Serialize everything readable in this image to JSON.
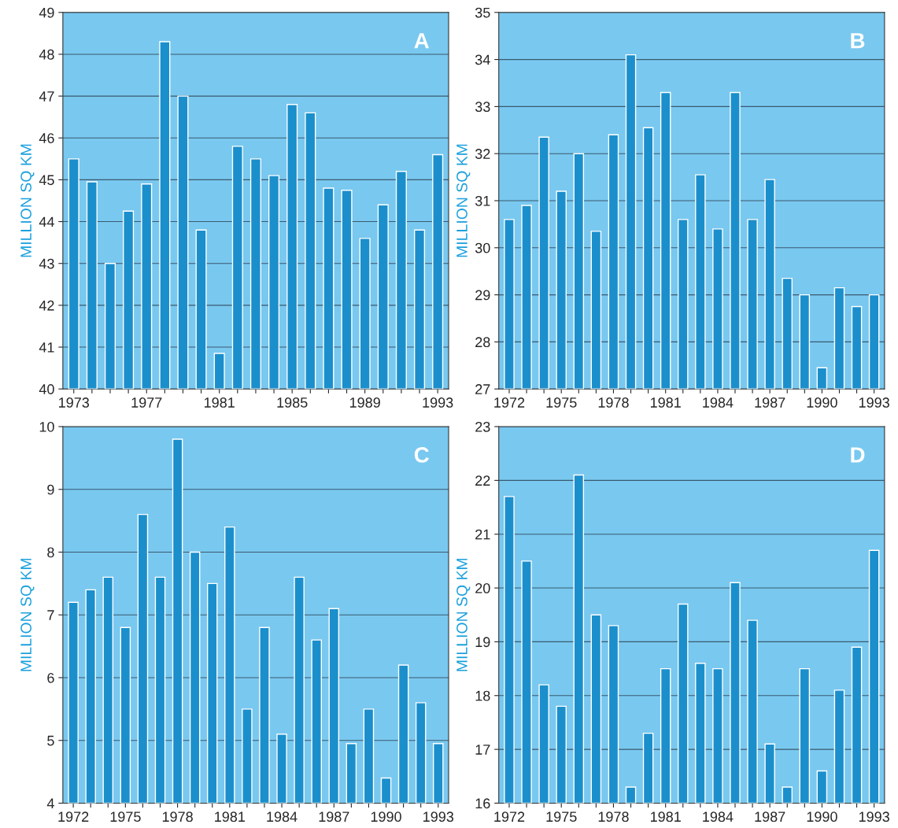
{
  "chart_data": [
    {
      "type": "bar",
      "title": "A",
      "ylabel": "MILLION SQ KM",
      "categories": [
        "1973",
        null,
        null,
        null,
        "1977",
        null,
        null,
        null,
        "1981",
        null,
        null,
        null,
        "1985",
        null,
        null,
        null,
        "1989",
        null,
        null,
        null,
        "1993"
      ],
      "series": [
        {
          "color": "#1b8fcc",
          "values": [
            45.5,
            44.95,
            43.0,
            44.25,
            44.9,
            48.3,
            47.0,
            43.8,
            40.85,
            45.8,
            45.5,
            45.1,
            46.8,
            46.6,
            44.8,
            44.75,
            43.6,
            44.4,
            45.2,
            43.8,
            45.6
          ]
        }
      ],
      "ylim": [
        40,
        49
      ],
      "yticks": [
        40,
        41,
        42,
        43,
        44,
        45,
        46,
        47,
        48,
        49
      ],
      "grid": "y"
    },
    {
      "type": "bar",
      "title": "B",
      "ylabel": "MILLION SQ KM",
      "categories": [
        "1972",
        null,
        null,
        "1975",
        null,
        null,
        "1978",
        null,
        null,
        "1981",
        null,
        null,
        "1984",
        null,
        null,
        "1987",
        null,
        null,
        "1990",
        null,
        null,
        "1993"
      ],
      "series": [
        {
          "color": "#1b8fcc",
          "values": [
            30.6,
            30.9,
            32.35,
            31.2,
            32.0,
            30.35,
            32.4,
            34.1,
            32.55,
            33.3,
            30.6,
            31.55,
            30.4,
            33.3,
            30.6,
            31.45,
            29.35,
            29.0,
            27.45,
            29.15,
            28.75,
            29.0
          ]
        }
      ],
      "ylim": [
        27,
        35
      ],
      "yticks": [
        27,
        28,
        29,
        30,
        31,
        32,
        33,
        34,
        35
      ],
      "grid": "y"
    },
    {
      "type": "bar",
      "title": "C",
      "ylabel": "MILLION SQ KM",
      "categories": [
        "1972",
        null,
        null,
        "1975",
        null,
        null,
        "1978",
        null,
        null,
        "1981",
        null,
        null,
        "1984",
        null,
        null,
        "1987",
        null,
        null,
        "1990",
        null,
        null,
        "1993"
      ],
      "series": [
        {
          "color": "#1b8fcc",
          "values": [
            7.2,
            7.4,
            7.6,
            6.8,
            8.6,
            7.6,
            9.8,
            8.0,
            7.5,
            8.4,
            5.5,
            6.8,
            5.1,
            7.6,
            6.6,
            7.1,
            4.95,
            5.5,
            4.4,
            6.2,
            5.6,
            4.95
          ]
        }
      ],
      "ylim": [
        4,
        10
      ],
      "yticks": [
        4,
        5,
        6,
        7,
        8,
        9,
        10
      ],
      "grid": "y"
    },
    {
      "type": "bar",
      "title": "D",
      "ylabel": "MILLION SQ KM",
      "categories": [
        "1972",
        null,
        null,
        "1975",
        null,
        null,
        "1978",
        null,
        null,
        "1981",
        null,
        null,
        "1984",
        null,
        null,
        "1987",
        null,
        null,
        "1990",
        null,
        null,
        "1993"
      ],
      "series": [
        {
          "color": "#1b8fcc",
          "values": [
            21.7,
            20.5,
            18.2,
            17.8,
            22.1,
            19.5,
            19.3,
            16.3,
            17.3,
            18.5,
            19.7,
            18.6,
            18.5,
            20.1,
            19.4,
            17.1,
            16.3,
            18.5,
            16.6,
            18.1,
            18.9,
            20.7
          ]
        }
      ],
      "ylim": [
        16,
        23
      ],
      "yticks": [
        16,
        17,
        18,
        19,
        20,
        21,
        22,
        23
      ],
      "grid": "y"
    }
  ]
}
